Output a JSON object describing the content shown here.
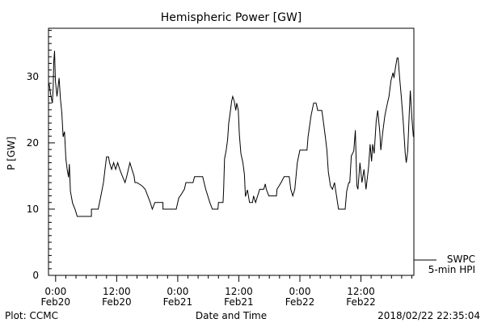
{
  "chart_data": {
    "type": "line",
    "title": "Hemispheric Power [GW]",
    "xlabel": "Date and Time",
    "ylabel": "P [GW]",
    "x_units": "hours since 2018-02-20 00:00 UT",
    "xlim": [
      -1.4,
      70.4
    ],
    "ylim": [
      0,
      37.3
    ],
    "yticks": [
      0,
      10,
      20,
      30
    ],
    "xticks": [
      {
        "x": 0,
        "label1": "0:00",
        "label2": "Feb20"
      },
      {
        "x": 12,
        "label1": "12:00",
        "label2": "Feb20"
      },
      {
        "x": 24,
        "label1": "0:00",
        "label2": "Feb21"
      },
      {
        "x": 36,
        "label1": "12:00",
        "label2": "Feb21"
      },
      {
        "x": 48,
        "label1": "0:00",
        "label2": "Feb22"
      },
      {
        "x": 60,
        "label1": "12:00",
        "label2": "Feb22"
      }
    ],
    "legend": {
      "placement": "bottom-right",
      "line1": "SWPC",
      "line2": "5-min HPI"
    },
    "series": [
      {
        "name": "SWPC 5-min HPI",
        "x": [
          -1.27,
          -0.9,
          -0.63,
          -0.48,
          -0.37,
          -0.21,
          -0.05,
          0.27,
          0.68,
          0.95,
          1.22,
          1.48,
          1.75,
          2.02,
          2.27,
          2.54,
          2.7,
          2.9,
          3.33,
          3.86,
          4.24,
          7.03,
          7.03,
          8.37,
          8.9,
          9.4,
          9.7,
          10.0,
          10.4,
          10.6,
          11.0,
          11.4,
          11.8,
          12.2,
          12.6,
          13.1,
          13.65,
          14.0,
          14.6,
          15.0,
          15.4,
          15.6,
          16.0,
          17.0,
          17.6,
          18.1,
          18.6,
          19.0,
          19.5,
          21.1,
          21.1,
          23.7,
          24.2,
          24.5,
          25.3,
          25.6,
          27.0,
          27.3,
          28.9,
          29.5,
          30.3,
          30.8,
          31.9,
          32.0,
          32.9,
          33.0,
          33.2,
          33.5,
          33.8,
          34.0,
          34.3,
          34.6,
          34.8,
          35.1,
          35.4,
          35.6,
          35.9,
          36.1,
          36.4,
          36.8,
          37.1,
          37.3,
          37.7,
          38.1,
          38.7,
          38.9,
          39.3,
          39.7,
          40.1,
          40.9,
          41.2,
          41.4,
          41.9,
          43.4,
          43.5,
          44.3,
          44.9,
          45.9,
          46.2,
          46.6,
          47.0,
          47.5,
          48.0,
          49.4,
          49.6,
          50.2,
          50.7,
          51.2,
          51.5,
          52.3,
          52.5,
          53.0,
          53.3,
          53.6,
          54.0,
          54.4,
          54.8,
          55.2,
          55.6,
          56.9,
          57.2,
          57.6,
          57.8,
          58.1,
          58.6,
          58.9,
          59.2,
          59.4,
          59.8,
          60.2,
          60.6,
          61.0,
          61.5,
          61.8,
          62.1,
          62.3,
          62.6,
          63.0,
          63.3,
          63.7,
          63.9,
          64.3,
          64.7,
          65.2,
          65.5,
          65.9,
          66.3,
          66.5,
          66.8,
          67.1,
          67.3,
          67.6,
          67.9,
          68.3,
          68.7,
          68.9,
          69.2,
          69.5,
          69.7,
          70.0,
          70.3
        ],
        "y": [
          28.9,
          27,
          26,
          28.4,
          32.2,
          33.9,
          29.4,
          27,
          29.8,
          26.6,
          24.5,
          20.9,
          21.7,
          17.6,
          16,
          14.8,
          16.8,
          12.7,
          10.9,
          9.9,
          8.9,
          8.9,
          10,
          10,
          12,
          14,
          16,
          17.9,
          17.9,
          17,
          16,
          17,
          16,
          17,
          16,
          15,
          14,
          15,
          17,
          16,
          15,
          14,
          14,
          13.5,
          13,
          12,
          11,
          10,
          11,
          11,
          10,
          10,
          11.7,
          12,
          13,
          14,
          14,
          14.9,
          14.9,
          13,
          11,
          10,
          10,
          11,
          11,
          12.7,
          17.6,
          18.8,
          20.5,
          22.9,
          24.5,
          26.3,
          27,
          26.3,
          24.9,
          26,
          24.9,
          21.3,
          18.4,
          17,
          15.2,
          11.9,
          12.9,
          11,
          11,
          12,
          11,
          12,
          13,
          13,
          13.8,
          13,
          12,
          12,
          13,
          14,
          14.9,
          14.9,
          13,
          12,
          13,
          17,
          18.9,
          18.9,
          20.9,
          24.1,
          26,
          26,
          24.9,
          24.9,
          23.9,
          20.9,
          18.9,
          15.6,
          13.5,
          13,
          14,
          12,
          10,
          10,
          12.7,
          14,
          14,
          18,
          18.8,
          21.9,
          13.5,
          13,
          17,
          14,
          16,
          13,
          16.4,
          19.8,
          17.2,
          19.8,
          18.4,
          23.3,
          24.9,
          21.7,
          18.9,
          21.7,
          24.1,
          26,
          27,
          29.4,
          30.6,
          29.8,
          31.4,
          32.8,
          32.8,
          29.8,
          27.2,
          23.3,
          18.4,
          17,
          18.8,
          24.5,
          27.9,
          23.8,
          20.9
        ]
      }
    ]
  },
  "footer": {
    "left": "Plot: CCMC",
    "right": "2018/02/22 22:35:04"
  }
}
